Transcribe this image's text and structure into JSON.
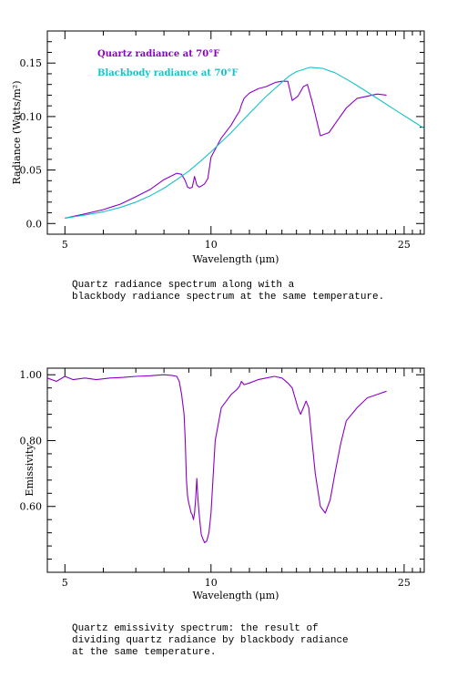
{
  "chart_data": [
    {
      "type": "line",
      "xscale": "log",
      "xlabel": "Wavelength (μm)",
      "ylabel": "Radiance (Watts/m²)",
      "xlim": [
        4.6,
        27.5
      ],
      "ylim": [
        -0.01,
        0.18
      ],
      "xticks": [
        5,
        10,
        25
      ],
      "xtick_labels": [
        "5",
        "10",
        "25"
      ],
      "yticks": [
        0.0,
        0.05,
        0.1,
        0.15
      ],
      "ytick_labels": [
        "0.0",
        "0.05",
        "0.10",
        "0.15"
      ],
      "legend_position": "top-left",
      "series": [
        {
          "name": "Quartz radiance at 70°F",
          "color": "#8b00c9",
          "x": [
            5.0,
            5.5,
            6.0,
            6.5,
            7.0,
            7.5,
            8.0,
            8.5,
            8.7,
            8.85,
            8.95,
            9.05,
            9.15,
            9.25,
            9.35,
            9.45,
            9.55,
            9.7,
            9.85,
            10.0,
            10.5,
            11.0,
            11.3,
            11.45,
            11.55,
            11.7,
            12.0,
            12.5,
            13.0,
            13.6,
            14.0,
            14.4,
            14.7,
            15.1,
            15.5,
            15.8,
            16.2,
            16.8,
            17.5,
            18.2,
            19.0,
            20.0,
            21.0,
            22.0,
            23.0
          ],
          "y": [
            0.005,
            0.009,
            0.013,
            0.018,
            0.025,
            0.032,
            0.041,
            0.047,
            0.046,
            0.04,
            0.034,
            0.033,
            0.034,
            0.044,
            0.036,
            0.034,
            0.035,
            0.037,
            0.042,
            0.062,
            0.08,
            0.092,
            0.101,
            0.105,
            0.111,
            0.117,
            0.122,
            0.126,
            0.128,
            0.132,
            0.133,
            0.133,
            0.115,
            0.119,
            0.128,
            0.13,
            0.112,
            0.082,
            0.085,
            0.096,
            0.108,
            0.117,
            0.119,
            0.121,
            0.12
          ]
        },
        {
          "name": "Blackbody radiance at 70°F",
          "color": "#16c2c9",
          "x": [
            5.0,
            5.5,
            6.0,
            6.5,
            7.0,
            7.5,
            8.0,
            8.5,
            9.0,
            9.5,
            10.0,
            11.0,
            12.0,
            13.0,
            14.0,
            14.5,
            15.0,
            16.0,
            17.0,
            18.0,
            19.0,
            20.0,
            22.0,
            24.0,
            26.0,
            27.5
          ],
          "y": [
            0.005,
            0.008,
            0.011,
            0.015,
            0.02,
            0.026,
            0.033,
            0.041,
            0.049,
            0.058,
            0.067,
            0.085,
            0.103,
            0.119,
            0.132,
            0.138,
            0.142,
            0.146,
            0.145,
            0.141,
            0.135,
            0.129,
            0.117,
            0.106,
            0.096,
            0.089
          ]
        }
      ]
    },
    {
      "type": "line",
      "xscale": "log",
      "xlabel": "Wavelength (μm)",
      "ylabel": "Emissivity",
      "xlim": [
        4.6,
        27.5
      ],
      "ylim": [
        0.4,
        1.02
      ],
      "xticks": [
        5,
        10,
        25
      ],
      "xtick_labels": [
        "5",
        "10",
        "25"
      ],
      "yticks": [
        0.6,
        0.8,
        1.0
      ],
      "ytick_labels": [
        "0.60",
        "0.80",
        "1.00"
      ],
      "series": [
        {
          "name": "",
          "color": "#8b00c9",
          "x": [
            4.6,
            4.8,
            5.0,
            5.2,
            5.5,
            5.8,
            6.2,
            6.6,
            7.0,
            7.5,
            8.0,
            8.3,
            8.5,
            8.6,
            8.7,
            8.8,
            8.85,
            8.9,
            8.95,
            9.0,
            9.05,
            9.1,
            9.15,
            9.2,
            9.25,
            9.3,
            9.35,
            9.4,
            9.45,
            9.5,
            9.55,
            9.6,
            9.7,
            9.8,
            9.9,
            10.0,
            10.2,
            10.5,
            11.0,
            11.3,
            11.45,
            11.55,
            11.7,
            12.0,
            12.5,
            13.0,
            13.5,
            14.0,
            14.4,
            14.7,
            14.9,
            15.1,
            15.3,
            15.5,
            15.7,
            15.9,
            16.1,
            16.4,
            16.8,
            17.2,
            17.6,
            18.0,
            18.5,
            19.0,
            20.0,
            21.0,
            22.0,
            23.0
          ],
          "y": [
            0.99,
            0.98,
            0.995,
            0.985,
            0.99,
            0.985,
            0.99,
            0.992,
            0.995,
            0.997,
            1.0,
            0.998,
            0.995,
            0.98,
            0.94,
            0.88,
            0.8,
            0.68,
            0.63,
            0.61,
            0.595,
            0.58,
            0.575,
            0.56,
            0.58,
            0.625,
            0.685,
            0.62,
            0.58,
            0.545,
            0.515,
            0.505,
            0.49,
            0.495,
            0.52,
            0.58,
            0.8,
            0.9,
            0.94,
            0.955,
            0.965,
            0.98,
            0.97,
            0.975,
            0.985,
            0.99,
            0.995,
            0.99,
            0.975,
            0.96,
            0.93,
            0.9,
            0.88,
            0.9,
            0.92,
            0.9,
            0.82,
            0.7,
            0.6,
            0.58,
            0.62,
            0.7,
            0.79,
            0.86,
            0.9,
            0.93,
            0.94,
            0.95
          ]
        }
      ]
    }
  ],
  "captions": {
    "top": "Quartz radiance spectrum along with a\nblackbody radiance spectrum at the same temperature.",
    "bottom": "Quartz emissivity spectrum: the result of\ndividing quartz radiance by blackbody radiance\nat the same temperature."
  }
}
